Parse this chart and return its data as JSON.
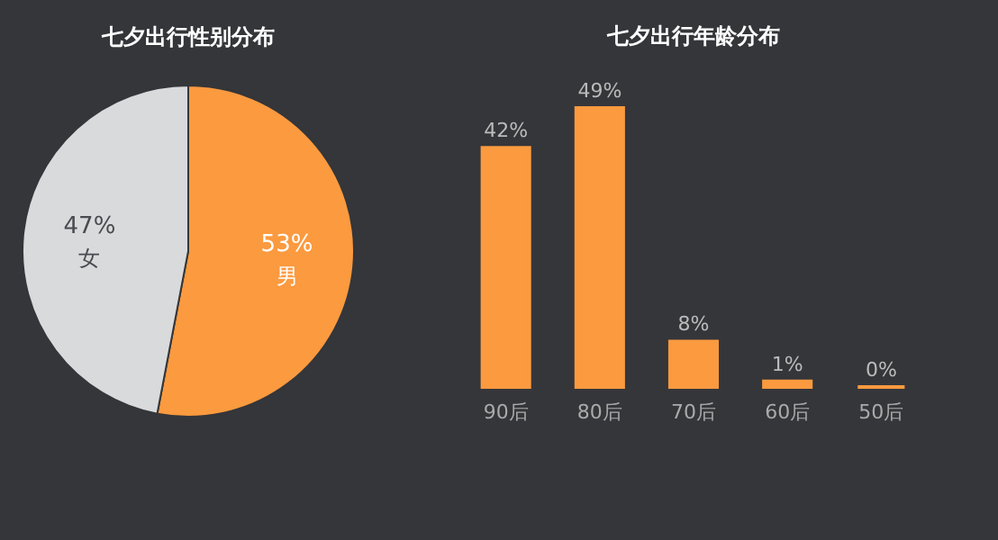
{
  "chart_data": [
    {
      "type": "pie",
      "title": "七夕出行性别分布",
      "categories": [
        "男",
        "女"
      ],
      "values": [
        53,
        47
      ],
      "colors": [
        "#fb9a3f",
        "#d9dadc"
      ],
      "value_labels": [
        "53%",
        "47%"
      ]
    },
    {
      "type": "bar",
      "title": "七夕出行年龄分布",
      "categories": [
        "90后",
        "80后",
        "70后",
        "60后",
        "50后"
      ],
      "values": [
        42,
        49,
        8,
        1,
        0
      ],
      "color": "#fb9a3f",
      "value_labels": [
        "42%",
        "49%",
        "8%",
        "1%",
        "0%"
      ]
    }
  ]
}
